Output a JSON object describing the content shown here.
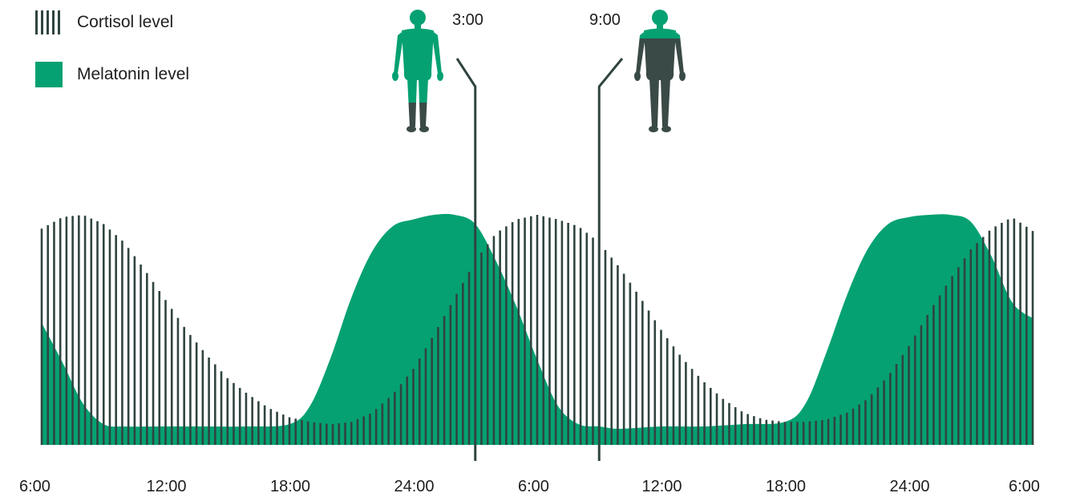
{
  "colors": {
    "cortisol": "#2f4440",
    "melatonin": "#05a172",
    "body_dark": "#3a4a46"
  },
  "legend": [
    {
      "label": "Cortisol level",
      "style": "vertical-stripes",
      "color": "#2f4440"
    },
    {
      "label": "Melatonin level",
      "style": "solid",
      "color": "#05a172"
    }
  ],
  "markers": [
    {
      "time": "3:00",
      "hour": 27,
      "figure": "body mostly melatonin, legs cortisol"
    },
    {
      "time": "9:00",
      "hour": 33,
      "figure": "body mostly cortisol, upper chest melatonin"
    }
  ],
  "chart_data": {
    "type": "area",
    "title": "",
    "xlabel": "",
    "ylabel": "",
    "x_tick_labels": [
      "6:00",
      "12:00",
      "18:00",
      "24:00",
      "6:00",
      "12:00",
      "18:00",
      "24:00",
      "6:00"
    ],
    "x_tick_hours": [
      6,
      12,
      18,
      24,
      30,
      36,
      42,
      48,
      54
    ],
    "xlim": [
      6,
      54
    ],
    "ylim": [
      0,
      1
    ],
    "grid": false,
    "legend_position": "top-left",
    "series": [
      {
        "name": "Melatonin level",
        "style": "filled area",
        "x": [
          6,
          7,
          8,
          9,
          10,
          12,
          14,
          16,
          18,
          19,
          20,
          21,
          22,
          23,
          24,
          25,
          26,
          27,
          28,
          29,
          30,
          31,
          32,
          33,
          34,
          36,
          38,
          40,
          42,
          43,
          44,
          45,
          46,
          47,
          48,
          49,
          50,
          51,
          52,
          53,
          54
        ],
        "values": [
          0.53,
          0.36,
          0.18,
          0.09,
          0.08,
          0.08,
          0.08,
          0.08,
          0.09,
          0.17,
          0.38,
          0.64,
          0.84,
          0.95,
          0.98,
          1.0,
          1.0,
          0.96,
          0.8,
          0.6,
          0.37,
          0.17,
          0.09,
          0.08,
          0.07,
          0.08,
          0.08,
          0.09,
          0.1,
          0.18,
          0.4,
          0.65,
          0.85,
          0.96,
          0.99,
          1.0,
          1.0,
          0.97,
          0.82,
          0.62,
          0.55
        ]
      },
      {
        "name": "Cortisol level",
        "style": "vertical stripes",
        "x": [
          6,
          7,
          8,
          9,
          10,
          11,
          12,
          13,
          14,
          15,
          16,
          17,
          18,
          19,
          20,
          21,
          22,
          23,
          24,
          25,
          26,
          27,
          28,
          29,
          30,
          31,
          32,
          33,
          34,
          35,
          36,
          37,
          38,
          39,
          40,
          41,
          42,
          43,
          44,
          45,
          46,
          47,
          48,
          49,
          50,
          51,
          52,
          53,
          54
        ],
        "values": [
          0.94,
          0.99,
          1.0,
          0.96,
          0.88,
          0.76,
          0.63,
          0.5,
          0.39,
          0.29,
          0.22,
          0.16,
          0.12,
          0.1,
          0.09,
          0.1,
          0.14,
          0.22,
          0.33,
          0.48,
          0.64,
          0.8,
          0.92,
          0.98,
          1.0,
          0.98,
          0.95,
          0.88,
          0.77,
          0.64,
          0.5,
          0.38,
          0.28,
          0.2,
          0.14,
          0.11,
          0.1,
          0.1,
          0.11,
          0.14,
          0.2,
          0.3,
          0.43,
          0.58,
          0.72,
          0.85,
          0.94,
          0.99,
          0.93
        ]
      }
    ]
  }
}
